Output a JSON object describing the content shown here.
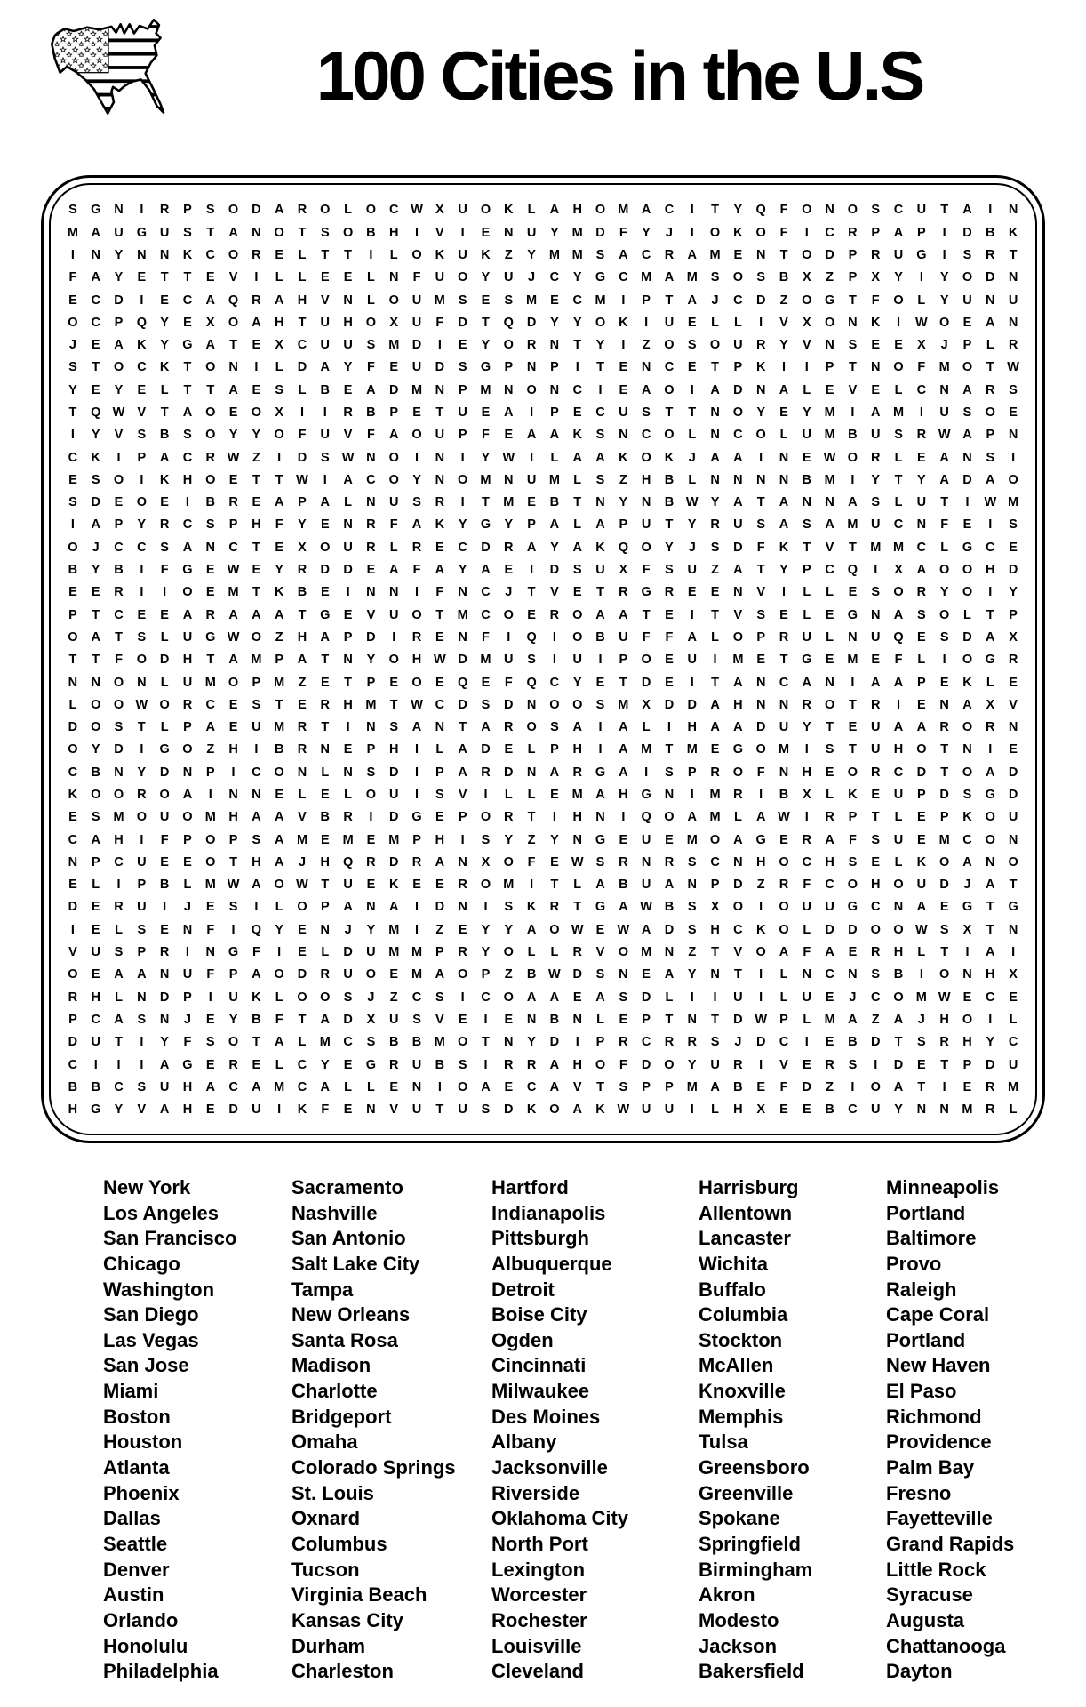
{
  "header": {
    "title": "100 Cities in the U.S",
    "flag_icon": "us-flag-map"
  },
  "colors": {
    "ink": "#000000",
    "background": "#ffffff"
  },
  "grid": {
    "rows": 41,
    "cols": 42,
    "letters": [
      "SGNIRPSODAROLOCWXUOKLAHOMACITYQFONOSCUTAIN",
      "MAUGUSTANOTSOBHIVIENUYMDFYJIOKOFICRPAPIDBK",
      "INYNNKCORELTTILOKUKZYMMSACRAMENTODPRUGISRT",
      "FAYETTEVILLEELNFUOYUJCYGCMAMSOSBXZPXYIYODN",
      "ECDIECAQRAHVNLOUMSESMECMIPTAJCDZOGTFOLYUNU",
      "OCPQYEXOAHTUHOXUFDTQDYYOKIUELLIVXONKIWOEAN",
      "JEAKYGATEXCUUSMDIEYORNTYIZOSOURYVNSEEXJPLR",
      "STOCKTONILDAYFEUDSGPNPITENCETPKIIPTNOFMOTW",
      "YEYELTTAESLBEADMNPMNONCIEAOIADNALEVELCNARS",
      "TQWVTAOEOXIIRBPETUEAIPECUSTTNOYEYMIAMIUSOE",
      "IYVSBSOYYOFUVFAOUPFEAAKSNCOLNCOLUMBUSRWAPN",
      "CKIPACRWZIDSWNOINIYWILAAKOKJAAINEWORLEANSI",
      "ESOIKHOETTWIACOYNOMNUMLSZHBLNNNNBMIYTYADAO",
      "SDEOEIBREAPALNUSRITMEBTNYNBWYATANNASLUTIWM",
      "IAPYRCSPHFYENRFAKYGYPALAPUTYRUSASAMUCNFEIS",
      "OJCCSANCTEXOURLRECDRAYAKQOYJSDFKTVTMMCLGCE",
      "BYBIFGEWEYRDDEAFAYAEIDSUXFSUZATYPCQIXAOOHD",
      "EERIIOEMTKBEINNIFNCJTVETRGREENVILLESORYOIY",
      "PTCEEARAAATGEVUOTMCOEROAATEITVSELEGNASOLTP",
      "OATSLUGWOZHAPDIRENFIQIOBUFFALOPRULNUQESDAX",
      "TTFODHTAMPATNYOHWDMUSIUIPOEUIMETGEMEFLIOGR",
      "NNONLUMOPMZETPEOEQEFQCYETDEITANCANIAAPEKLE",
      "LOOWORCESTERHMTWCDSDNOOSMXDDAHNNROTRIENAXV",
      "DOSTLPAEUMRTINSANTAROSAIALIHAADUYTEUAARORN",
      "OYDIGOZHIBRNEPHILADELPHIAMTMEGOMISTUHOTNIE",
      "CBNYDNPICONLNSDIPARDNARGAISPROFNHEORCDTOAD",
      "KOOROAINNELELOUISVILLEMAHGNIMRIBXLKEUPDSGD",
      "ESMOUOMHAAVBRIDGEPORTIHNIQOAMLAWIRPTLEPKOU",
      "CAHIFPOPSAMEMEMPHISYZYNGEUEMOAGERAFSUEMCON",
      "NPCUEEOTHAJHQRDRANXOFEWSRNRSCNHOCHSELKOANO",
      "ELIPBLMWAOWTUEKEEROMITLABUANPDZRFCOHOUDJAT",
      "DERUIJESILOPANAIDNISKRTGAWBSXOIOUUGCNAEGTG",
      "IELSENFIQYENJYMIZEYYAOWEWADSHCKOLDDOOWSXTN",
      "VUSPRINGFIELDUMMPRYOLLRVOMNZTVOAFAERHLTIAI",
      "OEAANUFPAODRUOEMAOPZBWDSNEAYNTILNCNSBIONHX",
      "RHLNDPIUKLOOSJZCSICOAAEASDLIIUILUEJCOMWECE",
      "PCASNJEYBFTADXUSVEIENBNLEPTNTDWPLMAZAJHOIL",
      "DUTIYFSOTALMCSBBMOTNYDIPRCRRSJDCIEBDTSRHYC",
      "CIIIAGERELCYEGRUBSIRRAHOFDOYURIVERSIDETPDU",
      "BBCSUHACAMCALLENIOAECAVTSPPMABEFDZIOATIERM",
      "HGYVAHEDUIKFENVUTUSDKOAKWUUILHXEEBCUYNNMRL"
    ]
  },
  "words": {
    "columns": [
      [
        "New York",
        "Los Angeles",
        "San Francisco",
        "Chicago",
        "Washington",
        "San Diego",
        "Las Vegas",
        "San Jose",
        "Miami",
        "Boston",
        "Houston",
        "Atlanta",
        "Phoenix",
        "Dallas",
        "Seattle",
        "Denver",
        "Austin",
        "Orlando",
        "Honolulu",
        "Philadelphia"
      ],
      [
        "Sacramento",
        "Nashville",
        "San Antonio",
        "Salt Lake City",
        "Tampa",
        "New Orleans",
        "Santa Rosa",
        "Madison",
        "Charlotte",
        "Bridgeport",
        "Omaha",
        "Colorado Springs",
        "St. Louis",
        "Oxnard",
        "Columbus",
        "Tucson",
        "Virginia Beach",
        "Kansas City",
        "Durham",
        "Charleston"
      ],
      [
        "Hartford",
        "Indianapolis",
        "Pittsburgh",
        "Albuquerque",
        "Detroit",
        "Boise City",
        "Ogden",
        "Cincinnati",
        "Milwaukee",
        "Des Moines",
        "Albany",
        "Jacksonville",
        "Riverside",
        "Oklahoma City",
        "North Port",
        "Lexington",
        "Worcester",
        "Rochester",
        "Louisville",
        "Cleveland"
      ],
      [
        "Harrisburg",
        "Allentown",
        "Lancaster",
        "Wichita",
        "Buffalo",
        "Columbia",
        "Stockton",
        "McAllen",
        "Knoxville",
        "Memphis",
        "Tulsa",
        "Greensboro",
        "Greenville",
        "Spokane",
        "Springfield",
        "Birmingham",
        "Akron",
        "Modesto",
        "Jackson",
        "Bakersfield"
      ],
      [
        "Minneapolis",
        "Portland",
        "Baltimore",
        "Provo",
        "Raleigh",
        "Cape Coral",
        "Portland",
        "New Haven",
        "El Paso",
        "Richmond",
        "Providence",
        "Palm Bay",
        "Fresno",
        "Fayetteville",
        "Grand Rapids",
        "Little Rock",
        "Syracuse",
        "Augusta",
        "Chattanooga",
        "Dayton"
      ]
    ]
  }
}
